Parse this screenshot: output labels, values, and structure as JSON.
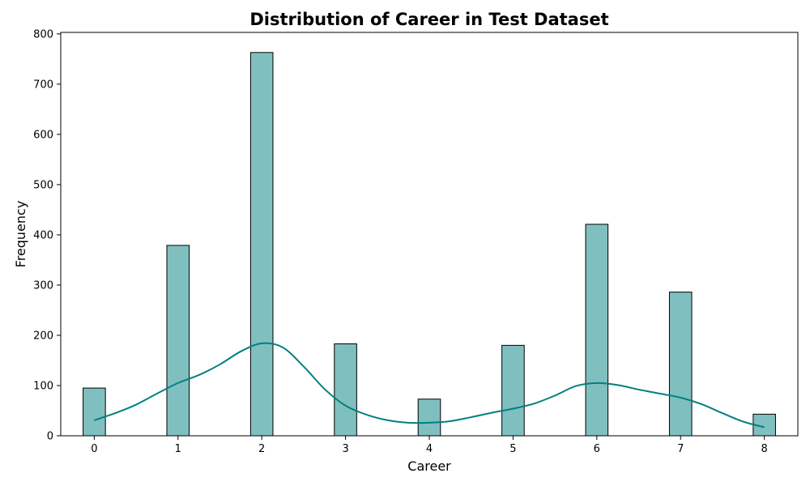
{
  "chart_data": {
    "type": "bar",
    "title": "Distribution of Career in Test Dataset",
    "xlabel": "Career",
    "ylabel": "Frequency",
    "xlim": [
      -0.4,
      8.4
    ],
    "ylim": [
      0,
      803
    ],
    "xticks": [
      0,
      1,
      2,
      3,
      4,
      5,
      6,
      7,
      8
    ],
    "yticks": [
      0,
      100,
      200,
      300,
      400,
      500,
      600,
      700,
      800
    ],
    "bin_width": 0.2667,
    "bars": [
      {
        "x": 0,
        "value": 95
      },
      {
        "x": 1,
        "value": 379
      },
      {
        "x": 2,
        "value": 763
      },
      {
        "x": 3,
        "value": 183
      },
      {
        "x": 4,
        "value": 73
      },
      {
        "x": 5,
        "value": 180
      },
      {
        "x": 6,
        "value": 421
      },
      {
        "x": 7,
        "value": 286
      },
      {
        "x": 8,
        "value": 43
      }
    ],
    "kde_curve": {
      "x": [
        0,
        0.25,
        0.5,
        0.75,
        1,
        1.25,
        1.5,
        1.75,
        2,
        2.25,
        2.5,
        2.75,
        3,
        3.25,
        3.5,
        3.75,
        4,
        4.25,
        4.5,
        4.75,
        5,
        5.25,
        5.5,
        5.75,
        6,
        6.25,
        6.5,
        6.75,
        7,
        7.25,
        7.5,
        7.75,
        8
      ],
      "y": [
        31,
        45,
        62,
        84,
        105,
        121,
        142,
        168,
        184,
        176,
        138,
        93,
        60,
        42,
        31,
        26,
        26,
        29,
        37,
        46,
        54,
        64,
        80,
        99,
        105,
        101,
        92,
        84,
        76,
        63,
        45,
        28,
        17
      ]
    },
    "grid": false,
    "colors": {
      "bar_fill": "#80bfbf",
      "bar_edge": "#000000",
      "kde_line": "#008080"
    }
  }
}
